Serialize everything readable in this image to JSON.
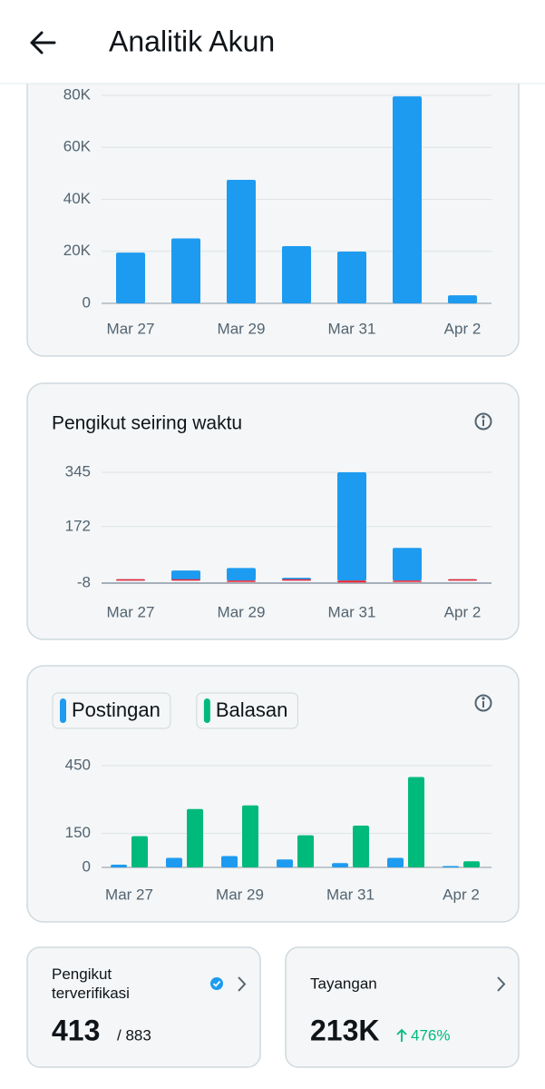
{
  "header": {
    "title": "Analitik Akun"
  },
  "chart_data": [
    {
      "type": "bar",
      "barmode": "overlay",
      "grid": true,
      "categories": [
        "Mar 27",
        null,
        "Mar 29",
        null,
        "Mar 31",
        null,
        "Apr 2"
      ],
      "series": [
        {
          "color": "#1d9bf0",
          "values": [
            19500,
            25000,
            47500,
            22000,
            19900,
            79600,
            3100
          ]
        }
      ],
      "ylim": [
        0,
        80000
      ],
      "yticks": [
        0,
        {
          "value": 20000,
          "label": "20K"
        },
        {
          "value": 40000,
          "label": "40K"
        },
        {
          "value": 60000,
          "label": "60K"
        },
        {
          "value": 80000,
          "label": "80K"
        }
      ]
    },
    {
      "type": "bar",
      "barmode": "overlay",
      "grid": true,
      "title": "Pengikut seiring waktu",
      "categories": [
        "Mar 27",
        null,
        "Mar 29",
        null,
        "Mar 31",
        null,
        "Apr 2"
      ],
      "series": [
        {
          "color": "#1d9bf0",
          "values": [
            2,
            32,
            40,
            9,
            345,
            104,
            1
          ]
        },
        {
          "color": "#f4212e",
          "values": [
            0,
            0,
            -1,
            0,
            -6,
            -1,
            0
          ]
        }
      ],
      "ylim": [
        -8,
        345
      ],
      "yticks": [
        -8,
        172,
        345
      ]
    },
    {
      "type": "bar",
      "barmode": "group",
      "grid": true,
      "legend": "top-left",
      "categories": [
        "Mar 27",
        null,
        "Mar 29",
        null,
        "Mar 31",
        null,
        "Apr 2"
      ],
      "series": [
        {
          "name": "Postingan",
          "color": "#1d9bf0",
          "values": [
            12,
            42,
            50,
            35,
            19,
            42,
            2
          ]
        },
        {
          "name": "Balasan",
          "color": "#00ba7c",
          "values": [
            138,
            258,
            274,
            142,
            185,
            400,
            27
          ]
        }
      ],
      "ylim": [
        0,
        450
      ],
      "yticks": [
        0,
        150,
        450
      ]
    }
  ],
  "stats": [
    {
      "label": "Pengikut terverifikasi",
      "value": "413",
      "total": "/ 883"
    },
    {
      "label": "Tayangan",
      "value": "213K",
      "change": "476%"
    }
  ]
}
